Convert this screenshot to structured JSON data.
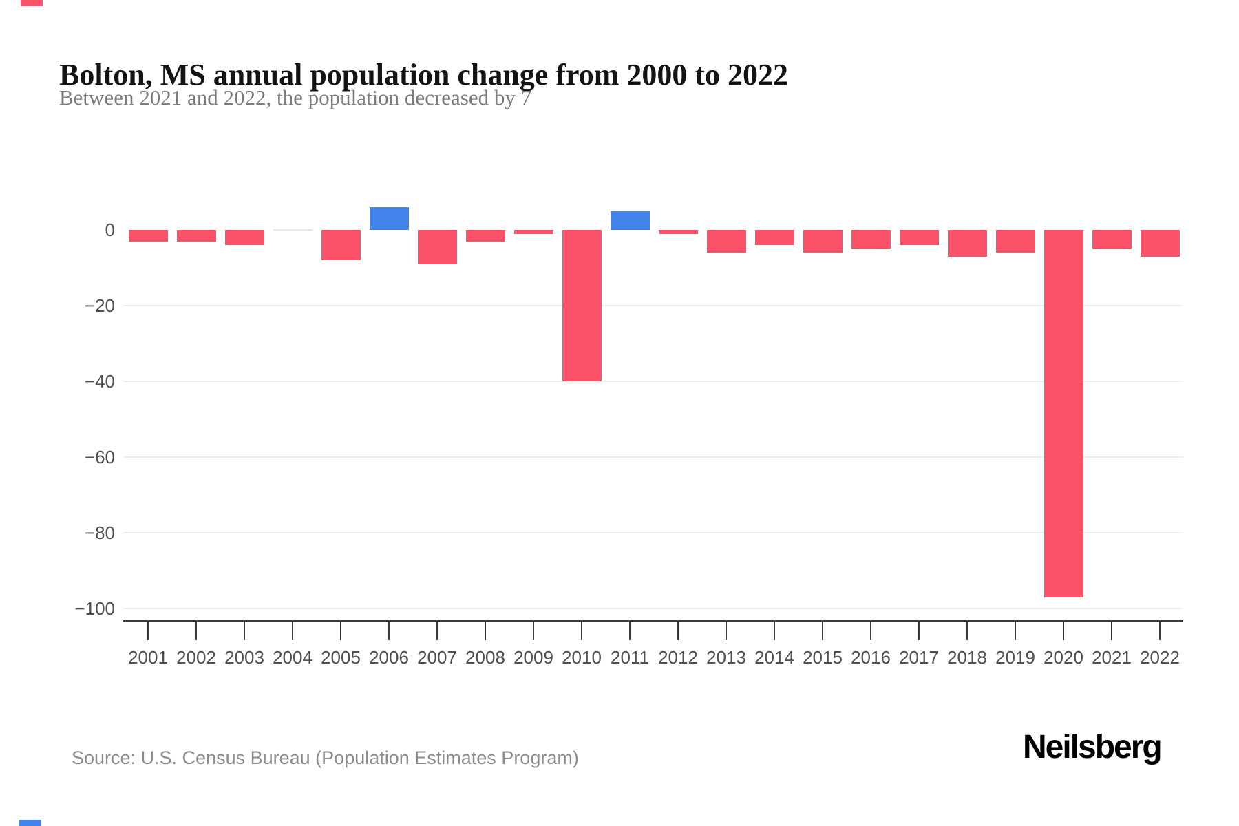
{
  "header": {
    "title": "Bolton, MS annual population change from 2000 to 2022",
    "subtitle": "Between 2021 and 2022, the population decreased by 7"
  },
  "footer": {
    "source": "Source: U.S. Census Bureau (Population Estimates Program)",
    "logo": "Neilsberg"
  },
  "colors": {
    "negative_bar": "#fa5369",
    "positive_bar": "#4284eb",
    "zero_bar": "#e6e6e6",
    "grid": "#ededed",
    "axis": "#3c3c3c",
    "tick_label": "#4f4f4f",
    "top_edge_marker": "#fa5369",
    "bottom_edge_marker": "#4284eb"
  },
  "chart_data": {
    "type": "bar",
    "title": "Bolton, MS annual population change from 2000 to 2022",
    "subtitle": "Between 2021 and 2022, the population decreased by 7",
    "xlabel": "",
    "ylabel": "",
    "categories": [
      "2001",
      "2002",
      "2003",
      "2004",
      "2005",
      "2006",
      "2007",
      "2008",
      "2009",
      "2010",
      "2011",
      "2012",
      "2013",
      "2014",
      "2015",
      "2016",
      "2017",
      "2018",
      "2019",
      "2020",
      "2021",
      "2022"
    ],
    "values": [
      -3,
      -3,
      -4,
      0,
      -8,
      6,
      -9,
      -3,
      -1,
      -40,
      5,
      -1,
      -6,
      -4,
      -6,
      -5,
      -4,
      -7,
      -6,
      -97,
      -5,
      -7
    ],
    "y_ticks": [
      0,
      -20,
      -40,
      -60,
      -80,
      -100
    ],
    "y_tick_labels": [
      "0",
      "−20",
      "−40",
      "−60",
      "−80",
      "−100"
    ],
    "ylim": [
      -105,
      10
    ],
    "grid": true,
    "legend": false,
    "color_rule": "negative bars pink, positive bars blue, zero bars light gray hairline"
  }
}
